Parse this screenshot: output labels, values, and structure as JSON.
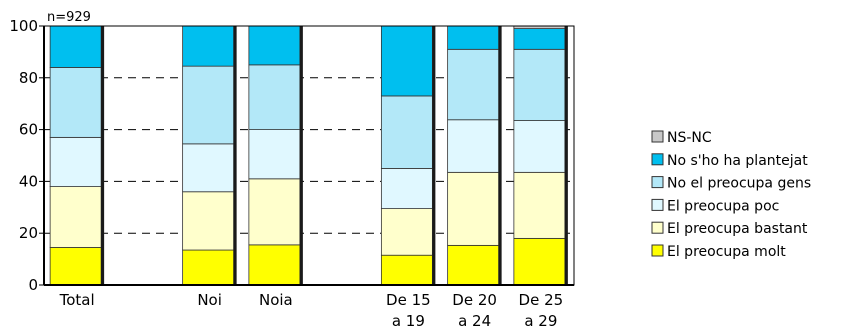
{
  "chart_data": {
    "type": "bar",
    "stacked": true,
    "note": "n=929",
    "categories": [
      [
        "Total"
      ],
      [
        ""
      ],
      [
        "Noi"
      ],
      [
        "Noia"
      ],
      [
        ""
      ],
      [
        "De 15",
        "a 19"
      ],
      [
        "De 20",
        "a 24"
      ],
      [
        "De 25",
        "a 29"
      ]
    ],
    "ylim": [
      0,
      100
    ],
    "yticks": [
      0,
      20,
      40,
      60,
      80,
      100
    ],
    "grid": true,
    "legend_position": "right",
    "series": [
      {
        "name": "El preocupa molt",
        "color": "#FFFF00",
        "values": [
          14.5,
          null,
          13.5,
          15.5,
          null,
          11.5,
          15.3,
          18.0
        ]
      },
      {
        "name": "El preocupa bastant",
        "color": "#FFFFCC",
        "values": [
          23.5,
          null,
          22.5,
          25.5,
          null,
          18.0,
          28.2,
          25.5
        ]
      },
      {
        "name": "El preocupa poc",
        "color": "#E0F8FF",
        "values": [
          19.0,
          null,
          18.5,
          19.0,
          null,
          15.5,
          20.3,
          20.0
        ]
      },
      {
        "name": "No el preocupa gens",
        "color": "#B3E8F8",
        "values": [
          27.0,
          null,
          30.0,
          25.0,
          null,
          28.0,
          27.2,
          27.5
        ]
      },
      {
        "name": "No s'ho ha plantejat",
        "color": "#00BFEF",
        "values": [
          16.0,
          null,
          15.5,
          15.0,
          null,
          27.0,
          9.0,
          8.0
        ]
      },
      {
        "name": "NS-NC",
        "color": "#C8C8C8",
        "values": [
          0,
          null,
          0,
          0,
          null,
          0,
          0,
          1.0
        ]
      }
    ]
  }
}
